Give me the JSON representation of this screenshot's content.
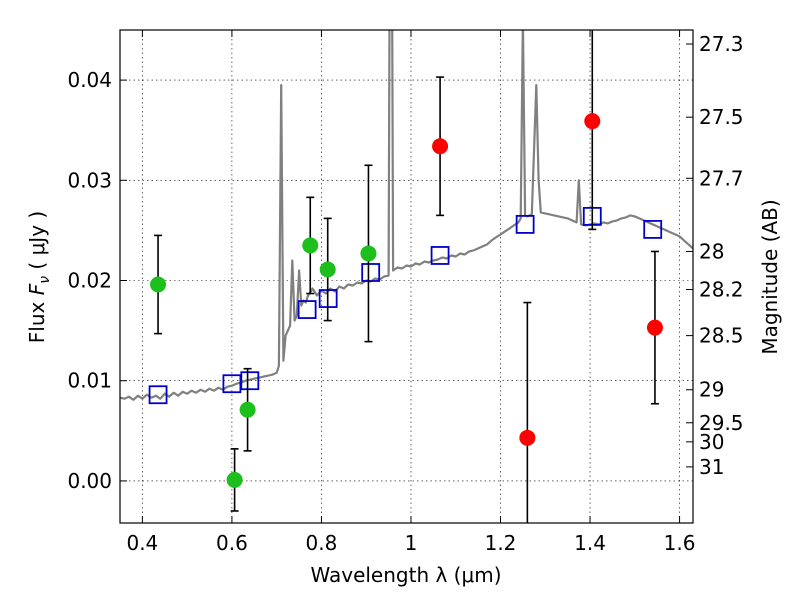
{
  "chart_data": {
    "type": "scatter",
    "xlabel": "Wavelength  λ (μm)",
    "ylabel": "Flux  F_ν  ( μJy )",
    "ylabel_parts": {
      "prefix": "Flux ",
      "symbol": "F",
      "subscript": "ν",
      "suffix": "  ( μJy )"
    },
    "y2label": "Magnitude (AB)",
    "xlim": [
      0.35,
      1.63
    ],
    "ylim": [
      -0.0042,
      0.045
    ],
    "xticks": [
      0.4,
      0.6,
      0.8,
      1.0,
      1.2,
      1.4,
      1.6
    ],
    "xtick_labels": [
      "0.4",
      "0.6",
      "0.8",
      "1",
      "1.2",
      "1.4",
      "1.6"
    ],
    "yticks": [
      0.0,
      0.01,
      0.02,
      0.03,
      0.04
    ],
    "ytick_labels": [
      "0.00",
      "0.01",
      "0.02",
      "0.03",
      "0.04"
    ],
    "y2ticks": [
      {
        "label": "27.3",
        "flux": 0.0436
      },
      {
        "label": "27.5",
        "flux": 0.0363
      },
      {
        "label": "27.7",
        "flux": 0.0302
      },
      {
        "label": "28",
        "flux": 0.0229
      },
      {
        "label": "28.2",
        "flux": 0.0191
      },
      {
        "label": "28.5",
        "flux": 0.0145
      },
      {
        "label": "29",
        "flux": 0.0091
      },
      {
        "label": "29.5",
        "flux": 0.0058
      },
      {
        "label": "30",
        "flux": 0.0039
      },
      {
        "label": "31",
        "flux": 0.0014
      }
    ],
    "grid": true,
    "series": [
      {
        "marker": "circle",
        "color": "#1cbf1c",
        "points": [
          {
            "x": 0.435,
            "y": 0.0196,
            "err": 0.0049
          },
          {
            "x": 0.606,
            "y": 0.0001,
            "err": 0.0031
          },
          {
            "x": 0.635,
            "y": 0.0071,
            "err": 0.0041
          },
          {
            "x": 0.775,
            "y": 0.0235,
            "err": 0.0048
          },
          {
            "x": 0.814,
            "y": 0.0211,
            "err": 0.0051
          },
          {
            "x": 0.905,
            "y": 0.0227,
            "err": 0.0088
          }
        ]
      },
      {
        "marker": "circle",
        "color": "#ff0000",
        "points": [
          {
            "x": 1.065,
            "y": 0.0334,
            "err": 0.0069
          },
          {
            "x": 1.26,
            "y": 0.0043,
            "err": 0.0135
          },
          {
            "x": 1.405,
            "y": 0.0359,
            "err": 0.0108
          },
          {
            "x": 1.545,
            "y": 0.0153,
            "err": 0.0076
          }
        ]
      },
      {
        "marker": "square",
        "color": "#0000cc",
        "points": [
          {
            "x": 0.435,
            "y": 0.0086
          },
          {
            "x": 0.6,
            "y": 0.0097
          },
          {
            "x": 0.64,
            "y": 0.01
          },
          {
            "x": 0.768,
            "y": 0.0171
          },
          {
            "x": 0.815,
            "y": 0.0182
          },
          {
            "x": 0.91,
            "y": 0.0208
          },
          {
            "x": 1.065,
            "y": 0.0225
          },
          {
            "x": 1.255,
            "y": 0.0256
          },
          {
            "x": 1.405,
            "y": 0.0264
          },
          {
            "x": 1.54,
            "y": 0.0251
          }
        ]
      },
      {
        "marker": "line",
        "color": "#808080",
        "points": [
          [
            0.35,
            0.0083
          ],
          [
            0.36,
            0.0082
          ],
          [
            0.37,
            0.0084
          ],
          [
            0.38,
            0.0081
          ],
          [
            0.39,
            0.0085
          ],
          [
            0.4,
            0.0082
          ],
          [
            0.41,
            0.0086
          ],
          [
            0.42,
            0.0083
          ],
          [
            0.43,
            0.0085
          ],
          [
            0.44,
            0.0082
          ],
          [
            0.45,
            0.0087
          ],
          [
            0.46,
            0.0084
          ],
          [
            0.47,
            0.0088
          ],
          [
            0.48,
            0.0085
          ],
          [
            0.49,
            0.0089
          ],
          [
            0.5,
            0.0087
          ],
          [
            0.51,
            0.009
          ],
          [
            0.52,
            0.0088
          ],
          [
            0.53,
            0.0091
          ],
          [
            0.54,
            0.0089
          ],
          [
            0.55,
            0.0092
          ],
          [
            0.56,
            0.009
          ],
          [
            0.57,
            0.0093
          ],
          [
            0.58,
            0.0091
          ],
          [
            0.59,
            0.0094
          ],
          [
            0.6,
            0.0095
          ],
          [
            0.61,
            0.0097
          ],
          [
            0.62,
            0.0098
          ],
          [
            0.63,
            0.01
          ],
          [
            0.64,
            0.0101
          ],
          [
            0.65,
            0.0102
          ],
          [
            0.66,
            0.0103
          ],
          [
            0.67,
            0.0104
          ],
          [
            0.68,
            0.0105
          ],
          [
            0.69,
            0.0106
          ],
          [
            0.7,
            0.0108
          ],
          [
            0.705,
            0.0115
          ],
          [
            0.71,
            0.0395
          ],
          [
            0.715,
            0.012
          ],
          [
            0.72,
            0.0145
          ],
          [
            0.725,
            0.015
          ],
          [
            0.73,
            0.0155
          ],
          [
            0.735,
            0.022
          ],
          [
            0.74,
            0.016
          ],
          [
            0.745,
            0.0165
          ],
          [
            0.75,
            0.021
          ],
          [
            0.755,
            0.0175
          ],
          [
            0.76,
            0.018
          ],
          [
            0.765,
            0.0178
          ],
          [
            0.77,
            0.0185
          ],
          [
            0.775,
            0.0188
          ],
          [
            0.78,
            0.0192
          ],
          [
            0.79,
            0.0185
          ],
          [
            0.8,
            0.019
          ],
          [
            0.81,
            0.0187
          ],
          [
            0.82,
            0.0192
          ],
          [
            0.83,
            0.0189
          ],
          [
            0.84,
            0.0194
          ],
          [
            0.85,
            0.0192
          ],
          [
            0.86,
            0.0196
          ],
          [
            0.87,
            0.0195
          ],
          [
            0.88,
            0.0198
          ],
          [
            0.89,
            0.0197
          ],
          [
            0.9,
            0.02
          ],
          [
            0.91,
            0.0199
          ],
          [
            0.92,
            0.0202
          ],
          [
            0.93,
            0.0201
          ],
          [
            0.94,
            0.0204
          ],
          [
            0.95,
            0.0205
          ],
          [
            0.952,
            0.046
          ],
          [
            0.958,
            0.046
          ],
          [
            0.96,
            0.021
          ],
          [
            0.97,
            0.0213
          ],
          [
            0.98,
            0.0212
          ],
          [
            0.99,
            0.0215
          ],
          [
            1.0,
            0.0214
          ],
          [
            1.01,
            0.0217
          ],
          [
            1.02,
            0.0216
          ],
          [
            1.03,
            0.0219
          ],
          [
            1.04,
            0.0218
          ],
          [
            1.05,
            0.022
          ],
          [
            1.06,
            0.0221
          ],
          [
            1.07,
            0.0223
          ],
          [
            1.08,
            0.0222
          ],
          [
            1.09,
            0.0225
          ],
          [
            1.1,
            0.0224
          ],
          [
            1.11,
            0.0227
          ],
          [
            1.12,
            0.0226
          ],
          [
            1.13,
            0.0229
          ],
          [
            1.14,
            0.023
          ],
          [
            1.15,
            0.0232
          ],
          [
            1.16,
            0.0234
          ],
          [
            1.17,
            0.0236
          ],
          [
            1.18,
            0.024
          ],
          [
            1.19,
            0.0243
          ],
          [
            1.2,
            0.0246
          ],
          [
            1.21,
            0.0249
          ],
          [
            1.22,
            0.0252
          ],
          [
            1.23,
            0.0255
          ],
          [
            1.24,
            0.0258
          ],
          [
            1.245,
            0.0262
          ],
          [
            1.25,
            0.046
          ],
          [
            1.255,
            0.0265
          ],
          [
            1.26,
            0.0264
          ],
          [
            1.27,
            0.0266
          ],
          [
            1.28,
            0.0395
          ],
          [
            1.285,
            0.03
          ],
          [
            1.29,
            0.0268
          ],
          [
            1.3,
            0.0267
          ],
          [
            1.31,
            0.0266
          ],
          [
            1.32,
            0.0265
          ],
          [
            1.33,
            0.0264
          ],
          [
            1.34,
            0.0263
          ],
          [
            1.35,
            0.0262
          ],
          [
            1.36,
            0.026
          ],
          [
            1.37,
            0.0258
          ],
          [
            1.375,
            0.03
          ],
          [
            1.38,
            0.0256
          ],
          [
            1.39,
            0.0255
          ],
          [
            1.4,
            0.0256
          ],
          [
            1.41,
            0.0257
          ],
          [
            1.42,
            0.0256
          ],
          [
            1.43,
            0.0258
          ],
          [
            1.44,
            0.0257
          ],
          [
            1.45,
            0.0259
          ],
          [
            1.46,
            0.026
          ],
          [
            1.47,
            0.0262
          ],
          [
            1.48,
            0.0263
          ],
          [
            1.49,
            0.0265
          ],
          [
            1.5,
            0.0264
          ],
          [
            1.51,
            0.0262
          ],
          [
            1.52,
            0.026
          ],
          [
            1.53,
            0.0258
          ],
          [
            1.54,
            0.0256
          ],
          [
            1.55,
            0.0254
          ],
          [
            1.56,
            0.0252
          ],
          [
            1.57,
            0.025
          ],
          [
            1.58,
            0.0248
          ],
          [
            1.59,
            0.0246
          ],
          [
            1.6,
            0.0244
          ],
          [
            1.61,
            0.024
          ],
          [
            1.62,
            0.0236
          ],
          [
            1.63,
            0.0232
          ]
        ]
      }
    ]
  }
}
